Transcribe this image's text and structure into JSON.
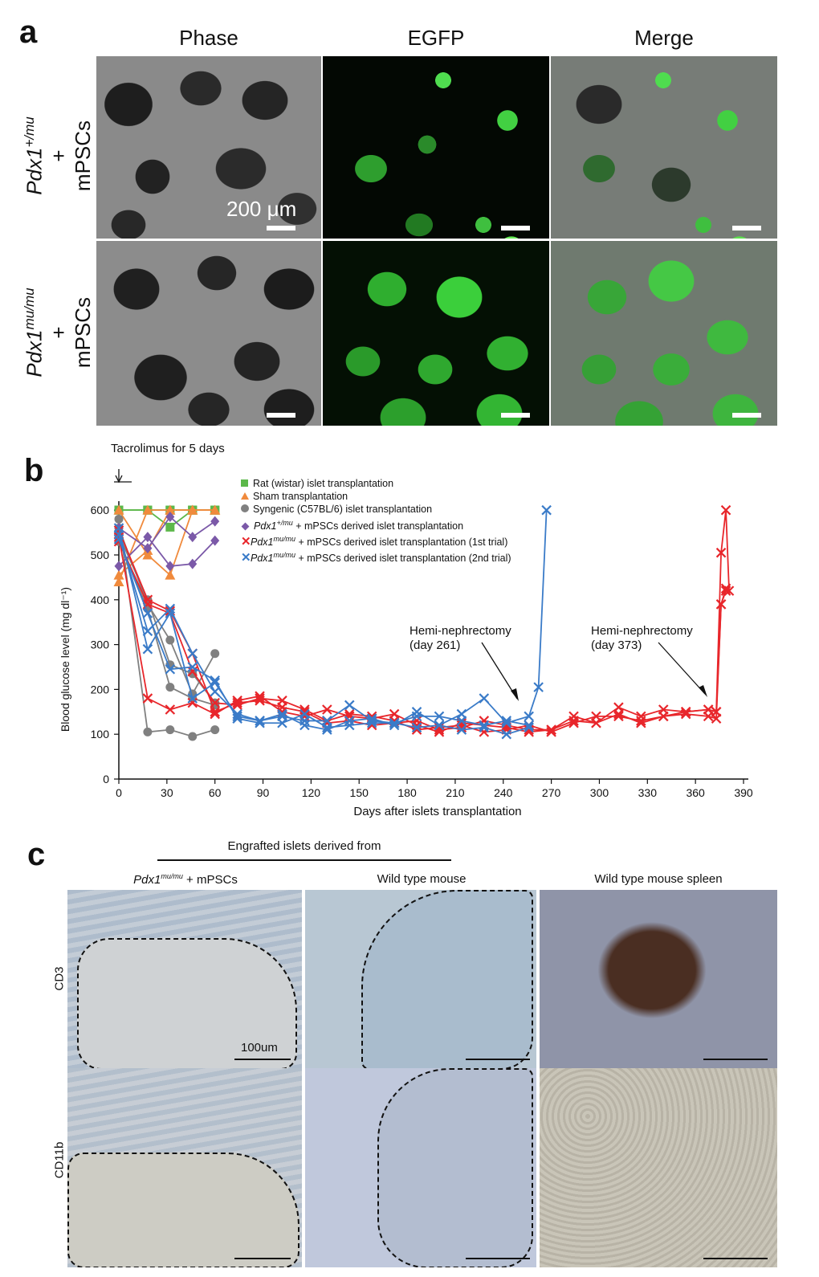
{
  "panel_a": {
    "letter": "a",
    "columns": [
      "Phase",
      "EGFP",
      "Merge"
    ],
    "rows": [
      {
        "gene": "Pdx1",
        "sup": "+/mu",
        "plus": "+",
        "cells": "mPSCs"
      },
      {
        "gene": "Pdx1",
        "sup": "mu/mu",
        "plus": "+",
        "cells": "mPSCs"
      }
    ],
    "scale_label": "200 μm"
  },
  "panel_b": {
    "letter": "b",
    "tacrolimus": "Tacrolimus for 5 days",
    "annotations": [
      {
        "line1": "Hemi-nephrectomy",
        "line2": "(day 261)"
      },
      {
        "line1": "Hemi-nephrectomy",
        "line2": "(day 373)"
      }
    ],
    "legend": [
      {
        "text": "Rat (wistar) islet transplantation",
        "color": "#5cb84a",
        "marker": "square"
      },
      {
        "text": "Sham transplantation",
        "color": "#f08a3c",
        "marker": "triangle"
      },
      {
        "text": "Syngenic (C57BL/6) islet transplantation",
        "color": "#808080",
        "marker": "circle"
      },
      {
        "gene": "Pdx1",
        "sup": "+/mu",
        "text": " + mPSCs derived islet transplantation",
        "color": "#7b59a8",
        "marker": "diamond"
      },
      {
        "gene": "Pdx1",
        "sup": "mu/mu",
        "text": " + mPSCs derived islet transplantation (1st trial)",
        "color": "#e8262b",
        "marker": "x"
      },
      {
        "gene": "Pdx1",
        "sup": "mu/mu",
        "text": " + mPSCs derived islet transplantation (2nd trial)",
        "color": "#3a7bc8",
        "marker": "x"
      }
    ]
  },
  "chart_data": {
    "type": "line",
    "xlabel": "Days after islets transplantation",
    "ylabel": "Blood glucose level (mg dl⁻¹)",
    "xlim": [
      0,
      390
    ],
    "ylim": [
      0,
      620
    ],
    "xticks": [
      0,
      30,
      60,
      90,
      120,
      150,
      180,
      210,
      240,
      270,
      300,
      330,
      360,
      390
    ],
    "yticks": [
      0,
      100,
      200,
      300,
      400,
      500,
      600
    ],
    "series": [
      {
        "name": "Rat (wistar) islet transplantation",
        "color": "#5cb84a",
        "marker": "square",
        "lines": [
          {
            "x": [
              0,
              18,
              32,
              46,
              60
            ],
            "y": [
              600,
              600,
              600,
              600,
              600
            ]
          },
          {
            "x": [
              0,
              18,
              32,
              46,
              60
            ],
            "y": [
              600,
              600,
              562,
              600,
              600
            ]
          },
          {
            "x": [
              0,
              18,
              32,
              46,
              60
            ],
            "y": [
              600,
              600,
              600,
              600,
              600
            ]
          }
        ]
      },
      {
        "name": "Sham transplantation",
        "color": "#f08a3c",
        "marker": "triangle",
        "lines": [
          {
            "x": [
              0,
              18,
              32,
              46,
              60
            ],
            "y": [
              440,
              600,
              600,
              600,
              600
            ]
          },
          {
            "x": [
              0,
              18,
              32,
              46,
              60
            ],
            "y": [
              455,
              510,
              600,
              600,
              600
            ]
          },
          {
            "x": [
              0,
              18,
              32,
              46,
              60
            ],
            "y": [
              600,
              500,
              455,
              600,
              600
            ]
          }
        ]
      },
      {
        "name": "Syngenic (C57BL/6) islet transplantation",
        "color": "#808080",
        "marker": "circle",
        "lines": [
          {
            "x": [
              0,
              18,
              32,
              46,
              60
            ],
            "y": [
              580,
              105,
              110,
              95,
              110
            ]
          },
          {
            "x": [
              0,
              18,
              32,
              46,
              60
            ],
            "y": [
              560,
              390,
              310,
              190,
              280
            ]
          },
          {
            "x": [
              0,
              18,
              32,
              46,
              60
            ],
            "y": [
              545,
              400,
              255,
              235,
              170
            ]
          },
          {
            "x": [
              0,
              18,
              32,
              46,
              60
            ],
            "y": [
              530,
              380,
              205,
              180,
              165
            ]
          }
        ]
      },
      {
        "name": "Pdx1+/mu + mPSCs derived islet transplantation",
        "color": "#7b59a8",
        "marker": "diamond",
        "lines": [
          {
            "x": [
              0,
              18,
              32,
              46,
              60
            ],
            "y": [
              475,
              540,
              475,
              480,
              532
            ]
          },
          {
            "x": [
              0,
              18,
              32,
              46,
              60
            ],
            "y": [
              560,
              515,
              585,
              540,
              575
            ]
          }
        ]
      },
      {
        "name": "Pdx1mu/mu + mPSCs derived islet transplantation (1st trial)",
        "color": "#e8262b",
        "marker": "x",
        "lines": [
          {
            "x": [
              0,
              18,
              32,
              46,
              60,
              74,
              88,
              102,
              116,
              130,
              144,
              158,
              172,
              186,
              200,
              214,
              228,
              242,
              256,
              270,
              284,
              298,
              312,
              326,
              340,
              354,
              368,
              373,
              376,
              379,
              381
            ],
            "y": [
              540,
              180,
              155,
              170,
              145,
              175,
              185,
              150,
              140,
              155,
              140,
              135,
              145,
              120,
              105,
              125,
              120,
              115,
              105,
              110,
              140,
              125,
              160,
              140,
              155,
              150,
              155,
              150,
              505,
              600,
              420
            ]
          },
          {
            "x": [
              0,
              18,
              32,
              46,
              60,
              74,
              88,
              102,
              116,
              130,
              144,
              158,
              172,
              186,
              200,
              214,
              228,
              242,
              256,
              270,
              284,
              298,
              312,
              326,
              340,
              354,
              368,
              373,
              376,
              379
            ],
            "y": [
              530,
              390,
              370,
              240,
              170,
              165,
              180,
              175,
              155,
              130,
              145,
              140,
              130,
              110,
              115,
              120,
              105,
              110,
              120,
              105,
              125,
              140,
              140,
              130,
              140,
              145,
              140,
              135,
              390,
              420
            ]
          },
          {
            "x": [
              0,
              18,
              32,
              46,
              60,
              74,
              88,
              102,
              116,
              130,
              144,
              158,
              172,
              186,
              200,
              214,
              228,
              242,
              256,
              270,
              284,
              298,
              312,
              326,
              340,
              354,
              368,
              373,
              376,
              379
            ],
            "y": [
              555,
              400,
              375,
              280,
              150,
              170,
              175,
              160,
              150,
              125,
              130,
              120,
              125,
              130,
              110,
              115,
              130,
              120,
              110,
              110,
              130,
              125,
              145,
              125,
              140,
              150,
              155,
              150,
              390,
              425
            ]
          }
        ]
      },
      {
        "name": "Pdx1mu/mu + mPSCs derived islet transplantation (2nd trial)",
        "color": "#3a7bc8",
        "marker": "x",
        "lines": [
          {
            "x": [
              0,
              18,
              32,
              46,
              60,
              74,
              88,
              102,
              116,
              130,
              144,
              158,
              172,
              186,
              200,
              214,
              228,
              242,
              256,
              262,
              267
            ],
            "y": [
              560,
              290,
              370,
              180,
              215,
              140,
              130,
              145,
              120,
              110,
              130,
              135,
              120,
              150,
              120,
              145,
              180,
              125,
              140,
              205,
              600
            ]
          },
          {
            "x": [
              0,
              18,
              32,
              46,
              60,
              74,
              88,
              102,
              116,
              130,
              144,
              158,
              172,
              186,
              200,
              214,
              228,
              242,
              256
            ],
            "y": [
              545,
              330,
              380,
              280,
              195,
              145,
              130,
              140,
              130,
              130,
              165,
              130,
              125,
              140,
              140,
              130,
              120,
              130,
              120
            ]
          },
          {
            "x": [
              0,
              18,
              32,
              46,
              60,
              74,
              88,
              102,
              116,
              130,
              144,
              158,
              172,
              186,
              200,
              214,
              228,
              242,
              256
            ],
            "y": [
              535,
              370,
              245,
              250,
              220,
              135,
              125,
              125,
              145,
              115,
              120,
              125,
              125,
              115,
              120,
              110,
              115,
              100,
              115
            ]
          }
        ]
      }
    ]
  },
  "panel_c": {
    "letter": "c",
    "header": "Engrafted islets derived from",
    "columns": [
      {
        "gene": "Pdx1",
        "sup": "mu/mu",
        "text": " + mPSCs"
      },
      {
        "text": "Wild type mouse"
      },
      {
        "text": "Wild type mouse spleen"
      }
    ],
    "rows": [
      "CD3",
      "CD11b"
    ],
    "scale_label": "100um"
  }
}
